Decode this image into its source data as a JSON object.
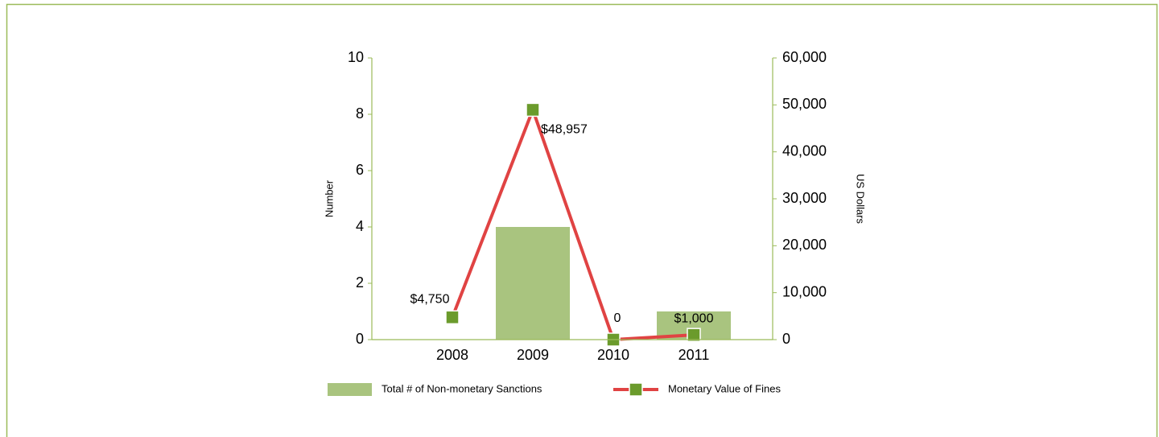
{
  "chart_data": {
    "type": "bar",
    "categories": [
      "2008",
      "2009",
      "2010",
      "2011"
    ],
    "series": [
      {
        "name": "Total # of Non-monetary Sanctions",
        "type": "bar",
        "color": "#a9c47f",
        "values": [
          0,
          4,
          0,
          1
        ]
      },
      {
        "name": "Monetary Value of Fines",
        "type": "line",
        "axis": "y2",
        "color": "#e04343",
        "marker_color": "#6b9b2c",
        "values": [
          4750,
          48957,
          0,
          1000
        ],
        "value_labels": [
          "$4,750",
          "$48,957",
          "0",
          "$1,000"
        ]
      }
    ],
    "ylabel": "Number",
    "y2label": "US Dollars",
    "ylim": [
      0,
      10
    ],
    "yticks": [
      0,
      2,
      4,
      6,
      8,
      10
    ],
    "y2lim": [
      0,
      60000
    ],
    "y2ticks": [
      0,
      {
        "value": 10000,
        "label": "10,000"
      },
      {
        "value": 20000,
        "label": "20,000"
      },
      {
        "value": 30000,
        "label": "30,000"
      },
      {
        "value": 40000,
        "label": "40,000"
      },
      {
        "value": 50000,
        "label": "50,000"
      },
      {
        "value": 60000,
        "label": "60,000"
      }
    ],
    "legend": "bottom"
  }
}
